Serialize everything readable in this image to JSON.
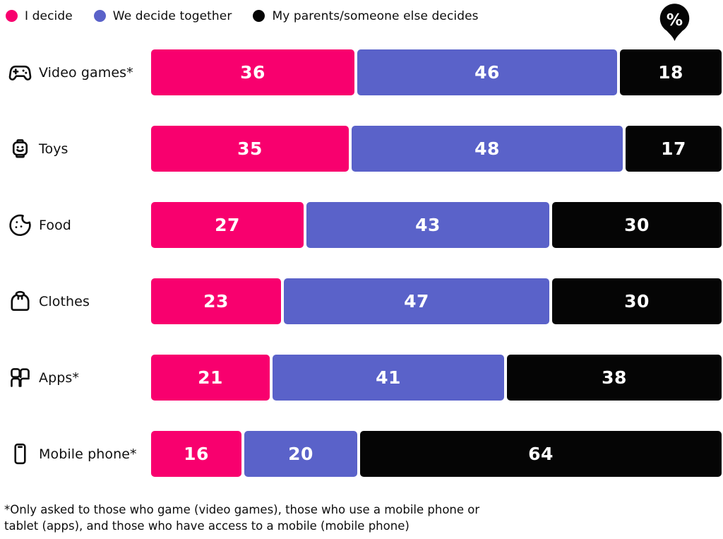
{
  "legend": {
    "items": [
      {
        "label": "I decide",
        "color": "#F8006E"
      },
      {
        "label": "We decide together",
        "color": "#5A62C9"
      },
      {
        "label": "My parents/someone else decides",
        "color": "#050505"
      }
    ],
    "unit_badge": "%"
  },
  "chart_data": {
    "type": "bar",
    "orientation": "horizontal",
    "stacked": true,
    "unit": "%",
    "xlim": [
      0,
      100
    ],
    "value_labels": "inside",
    "grid": false,
    "legend_position": "top",
    "categories": [
      "Video games*",
      "Toys",
      "Food",
      "Clothes",
      "Apps*",
      "Mobile phone*"
    ],
    "category_icons": [
      "game-controller-icon",
      "toy-figure-head-icon",
      "cookie-icon",
      "sweater-icon",
      "apps-grid-icon",
      "mobile-phone-icon"
    ],
    "series": [
      {
        "name": "I decide",
        "color": "#F8006E",
        "values": [
          36,
          35,
          27,
          23,
          21,
          16
        ]
      },
      {
        "name": "We decide together",
        "color": "#5A62C9",
        "values": [
          46,
          48,
          43,
          47,
          41,
          20
        ]
      },
      {
        "name": "My parents/someone else decides",
        "color": "#050505",
        "values": [
          18,
          17,
          30,
          30,
          38,
          64
        ]
      }
    ]
  },
  "footnote": "*Only asked to those who game (video games), those who use a mobile phone or tablet (apps), and those who have access to a mobile (mobile phone)"
}
